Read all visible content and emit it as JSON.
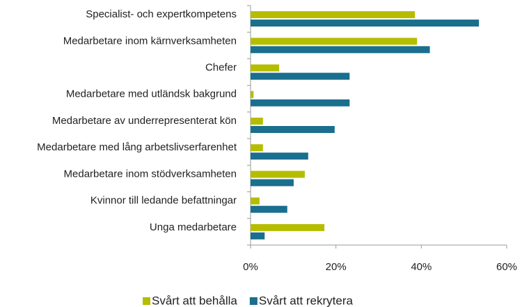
{
  "chart_data": {
    "type": "barh",
    "categories": [
      "Specialist- och expertkompetens",
      "Medarbetare inom kärnverksamheten",
      "Chefer",
      "Medarbetare med utländsk bakgrund",
      "Medarbetare av underrepresenterat kön",
      "Medarbetare med lång arbetslivserfarenhet",
      "Medarbetare inom stödverksamheten",
      "Kvinnor till ledande befattningar",
      "Unga medarbetare"
    ],
    "series": [
      {
        "name": "Svårt att behålla",
        "color": "#b5bd00",
        "values": [
          38.5,
          39,
          6.7,
          0.7,
          2.9,
          2.9,
          12.7,
          2.1,
          17.3
        ]
      },
      {
        "name": "Svårt att rekrytera",
        "color": "#1a6e8e",
        "values": [
          53.5,
          42,
          23.2,
          23.2,
          19.7,
          13.5,
          10.1,
          8.6,
          3.3
        ]
      }
    ],
    "xlim": [
      0,
      60
    ],
    "xticks": [
      {
        "value": 0,
        "label": "0%"
      },
      {
        "value": 20,
        "label": "20%"
      },
      {
        "value": 40,
        "label": "40%"
      },
      {
        "value": 60,
        "label": "60%"
      }
    ],
    "legend": "bottom"
  }
}
